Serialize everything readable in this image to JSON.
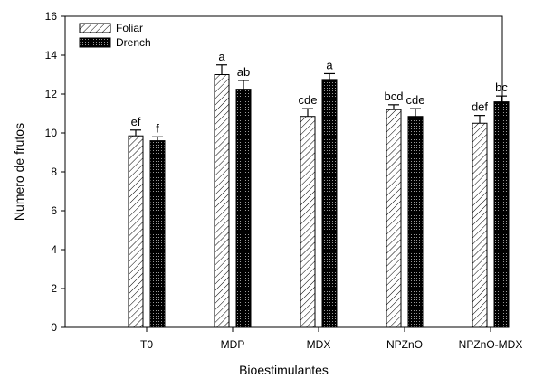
{
  "chart_data": {
    "type": "bar",
    "xlabel": "Bioestimulantes",
    "ylabel": "Numero de frutos",
    "ylim": [
      0,
      16
    ],
    "yticks": [
      0,
      2,
      4,
      6,
      8,
      10,
      12,
      14,
      16
    ],
    "categories": [
      "T0",
      "MDP",
      "MDX",
      "NPZnO",
      "NPZnO-MDX"
    ],
    "legend_position": "top-left",
    "series": [
      {
        "name": "Foliar",
        "pattern": "diagonal-hatch",
        "values": [
          9.85,
          13.0,
          10.85,
          11.2,
          10.5
        ],
        "errors": [
          0.3,
          0.5,
          0.4,
          0.25,
          0.4
        ],
        "letters": [
          "ef",
          "a",
          "cde",
          "bcd",
          "def"
        ]
      },
      {
        "name": "Drench",
        "pattern": "dense-dots",
        "values": [
          9.6,
          12.25,
          12.75,
          10.85,
          11.6
        ],
        "errors": [
          0.2,
          0.45,
          0.3,
          0.4,
          0.3
        ],
        "letters": [
          "f",
          "ab",
          "a",
          "cde",
          "bc"
        ]
      }
    ]
  }
}
